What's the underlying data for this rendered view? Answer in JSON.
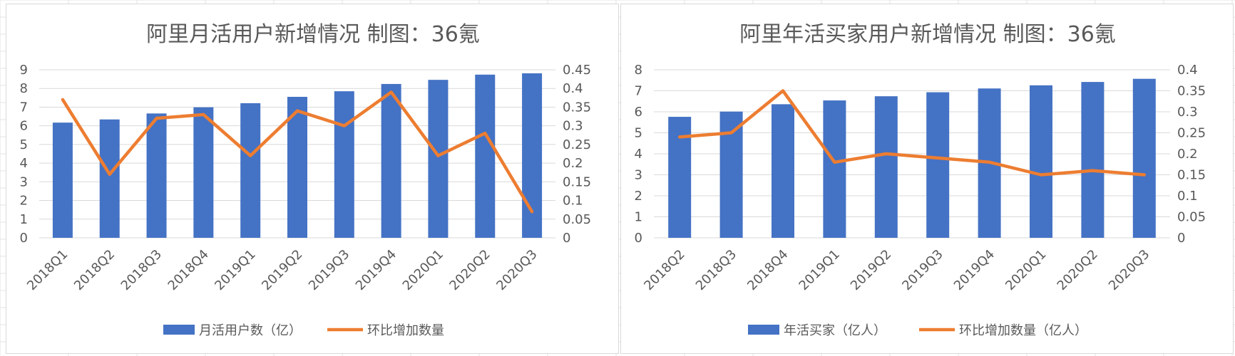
{
  "colors": {
    "bar": "#4472c4",
    "line": "#ed7d31",
    "grid": "#d9d9d9",
    "text": "#595959"
  },
  "chart_data": [
    {
      "type": "bar",
      "title": "阿里月活用户新增情况 制图：36氪",
      "categories": [
        "2018Q1",
        "2018Q2",
        "2018Q3",
        "2018Q4",
        "2019Q1",
        "2019Q2",
        "2019Q3",
        "2019Q4",
        "2020Q1",
        "2020Q2",
        "2020Q3"
      ],
      "series": [
        {
          "name": "月活用户数（亿）",
          "type": "bar",
          "axis": "left",
          "values": [
            6.17,
            6.34,
            6.66,
            6.99,
            7.21,
            7.55,
            7.85,
            8.24,
            8.46,
            8.74,
            8.81
          ]
        },
        {
          "name": "环比增加数量",
          "type": "line",
          "axis": "right",
          "values": [
            0.37,
            0.17,
            0.32,
            0.33,
            0.22,
            0.34,
            0.3,
            0.39,
            0.22,
            0.28,
            0.07
          ]
        }
      ],
      "ylim_left": [
        0,
        9
      ],
      "yticks_left": [
        "0",
        "1",
        "2",
        "3",
        "4",
        "5",
        "6",
        "7",
        "8",
        "9"
      ],
      "ylim_right": [
        0,
        0.45
      ],
      "yticks_right": [
        "0",
        "0.05",
        "0.1",
        "0.15",
        "0.2",
        "0.25",
        "0.3",
        "0.35",
        "0.4",
        "0.45"
      ],
      "grid": true,
      "legend": "bottom"
    },
    {
      "type": "bar",
      "title": "阿里年活买家用户新增情况 制图：36氪",
      "categories": [
        "2018Q2",
        "2018Q3",
        "2018Q4",
        "2019Q1",
        "2019Q2",
        "2019Q3",
        "2019Q4",
        "2020Q1",
        "2020Q2",
        "2020Q3"
      ],
      "series": [
        {
          "name": "年活买家（亿人）",
          "type": "bar",
          "axis": "left",
          "values": [
            5.76,
            6.01,
            6.36,
            6.54,
            6.74,
            6.93,
            7.11,
            7.26,
            7.42,
            7.57
          ]
        },
        {
          "name": "环比增加数量（亿人）",
          "type": "line",
          "axis": "right",
          "values": [
            0.24,
            0.25,
            0.35,
            0.18,
            0.2,
            0.19,
            0.18,
            0.15,
            0.16,
            0.15
          ]
        }
      ],
      "ylim_left": [
        0,
        8
      ],
      "yticks_left": [
        "0",
        "1",
        "2",
        "3",
        "4",
        "5",
        "6",
        "7",
        "8"
      ],
      "ylim_right": [
        0,
        0.4
      ],
      "yticks_right": [
        "0",
        "0.05",
        "0.1",
        "0.15",
        "0.2",
        "0.25",
        "0.3",
        "0.35",
        "0.4"
      ],
      "grid": true,
      "legend": "bottom"
    }
  ]
}
